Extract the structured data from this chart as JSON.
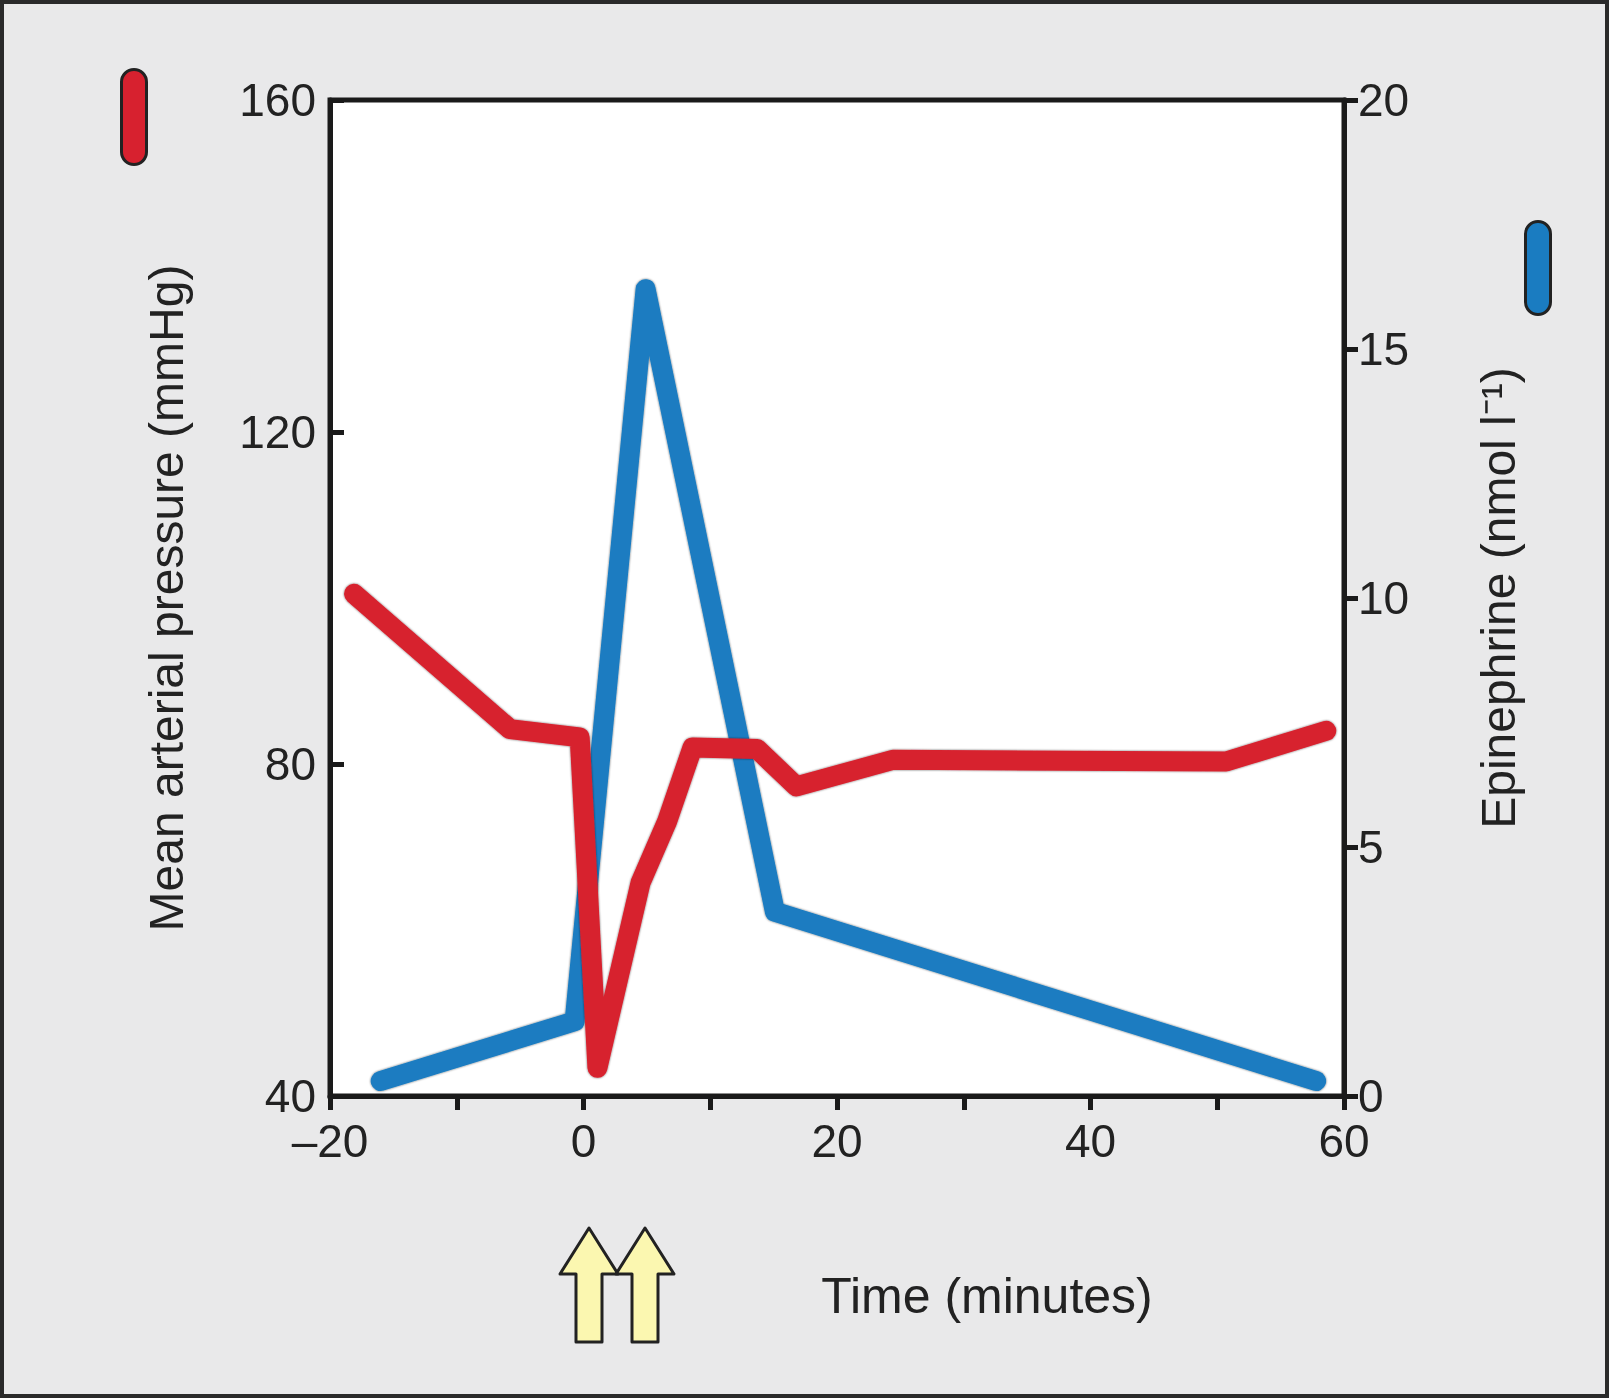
{
  "chart_data": {
    "type": "line",
    "xlabel": "Time (minutes)",
    "ylabel": "Mean arterial pressure (mmHg)",
    "y2label": "Epinephrine (nmol l⁻¹)",
    "series": [
      {
        "color": "#d7212f",
        "x": [
          -18.1,
          -5.8,
          -0.3,
          1.1,
          4.5,
          6.6,
          8.6,
          13.7,
          16.8,
          24.4,
          50.7,
          58.6
        ],
        "values": [
          100.5,
          84.2,
          83.2,
          43.4,
          65.7,
          73.1,
          82.0,
          81.8,
          77.3,
          80.5,
          80.3,
          84.0
        ]
      },
      {
        "color": "#1a7cc1",
        "axis": "y2",
        "x": [
          -16.0,
          -0.7,
          4.9,
          15.1,
          57.8
        ],
        "values": [
          0.3,
          1.5,
          16.2,
          3.7,
          0.3
        ]
      }
    ],
    "xlim": [
      -20,
      60
    ],
    "xticks": [
      {
        "value": -20,
        "label": "–20"
      },
      {
        "value": -10,
        "label": null
      },
      0,
      {
        "value": 10,
        "label": null
      },
      20,
      {
        "value": 30,
        "label": null
      },
      40,
      {
        "value": 50,
        "label": null
      },
      60
    ],
    "ylim": [
      40,
      160
    ],
    "yticks": [
      40,
      80,
      120,
      160
    ],
    "y2lim": [
      0,
      20
    ],
    "y2ticks": [
      0,
      5,
      10,
      15,
      20
    ],
    "grid": false,
    "line_style": "solid"
  }
}
